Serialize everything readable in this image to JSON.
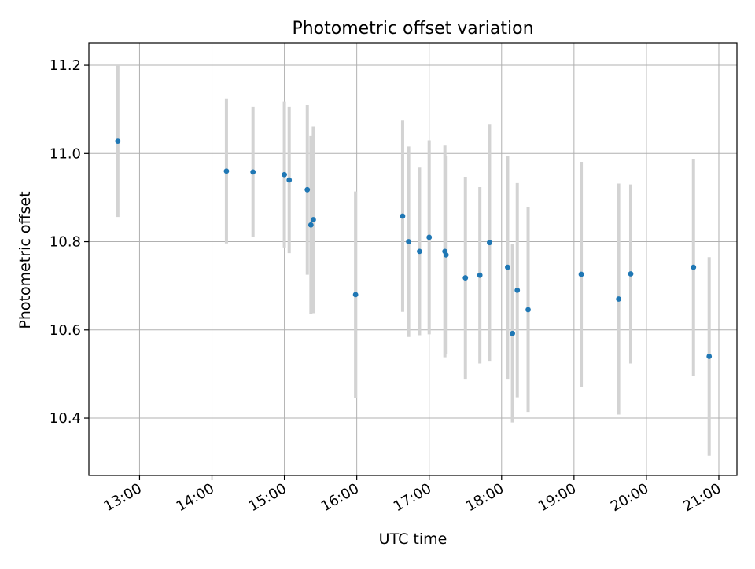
{
  "chart_data": {
    "type": "scatter",
    "title": "Photometric offset variation",
    "xlabel": "UTC time",
    "ylabel": "Photometric offset",
    "xlim": [
      "12:18",
      "21:15"
    ],
    "ylim": [
      10.27,
      11.25
    ],
    "x_ticks": [
      "13:00",
      "14:00",
      "15:00",
      "16:00",
      "17:00",
      "18:00",
      "19:00",
      "20:00",
      "21:00"
    ],
    "y_ticks": [
      "10.4",
      "10.6",
      "10.8",
      "11.0",
      "11.2"
    ],
    "grid": true,
    "marker_color": "#1f77b4",
    "errorbar_color": "#d3d3d3",
    "points": [
      {
        "x": "12:42",
        "y": 11.028,
        "err": 0.172
      },
      {
        "x": "14:12",
        "y": 10.96,
        "err": 0.164
      },
      {
        "x": "14:34",
        "y": 10.958,
        "err": 0.148
      },
      {
        "x": "15:00",
        "y": 10.952,
        "err": 0.165
      },
      {
        "x": "15:04",
        "y": 10.94,
        "err": 0.166
      },
      {
        "x": "15:19",
        "y": 10.918,
        "err": 0.193
      },
      {
        "x": "15:22",
        "y": 10.838,
        "err": 0.202
      },
      {
        "x": "15:24",
        "y": 10.85,
        "err": 0.212
      },
      {
        "x": "15:59",
        "y": 10.68,
        "err": 0.234
      },
      {
        "x": "16:38",
        "y": 10.858,
        "err": 0.217
      },
      {
        "x": "16:43",
        "y": 10.8,
        "err": 0.216
      },
      {
        "x": "16:52",
        "y": 10.778,
        "err": 0.19
      },
      {
        "x": "17:00",
        "y": 10.81,
        "err": 0.22
      },
      {
        "x": "17:13",
        "y": 10.778,
        "err": 0.24
      },
      {
        "x": "17:14",
        "y": 10.77,
        "err": 0.225
      },
      {
        "x": "17:30",
        "y": 10.718,
        "err": 0.229
      },
      {
        "x": "17:42",
        "y": 10.724,
        "err": 0.2
      },
      {
        "x": "17:50",
        "y": 10.798,
        "err": 0.268
      },
      {
        "x": "18:05",
        "y": 10.742,
        "err": 0.253
      },
      {
        "x": "18:09",
        "y": 10.592,
        "err": 0.202
      },
      {
        "x": "18:13",
        "y": 10.69,
        "err": 0.243
      },
      {
        "x": "18:22",
        "y": 10.646,
        "err": 0.232
      },
      {
        "x": "19:06",
        "y": 10.726,
        "err": 0.255
      },
      {
        "x": "19:37",
        "y": 10.67,
        "err": 0.262
      },
      {
        "x": "19:47",
        "y": 10.727,
        "err": 0.203
      },
      {
        "x": "20:39",
        "y": 10.742,
        "err": 0.246
      },
      {
        "x": "20:52",
        "y": 10.54,
        "err": 0.225
      }
    ]
  }
}
